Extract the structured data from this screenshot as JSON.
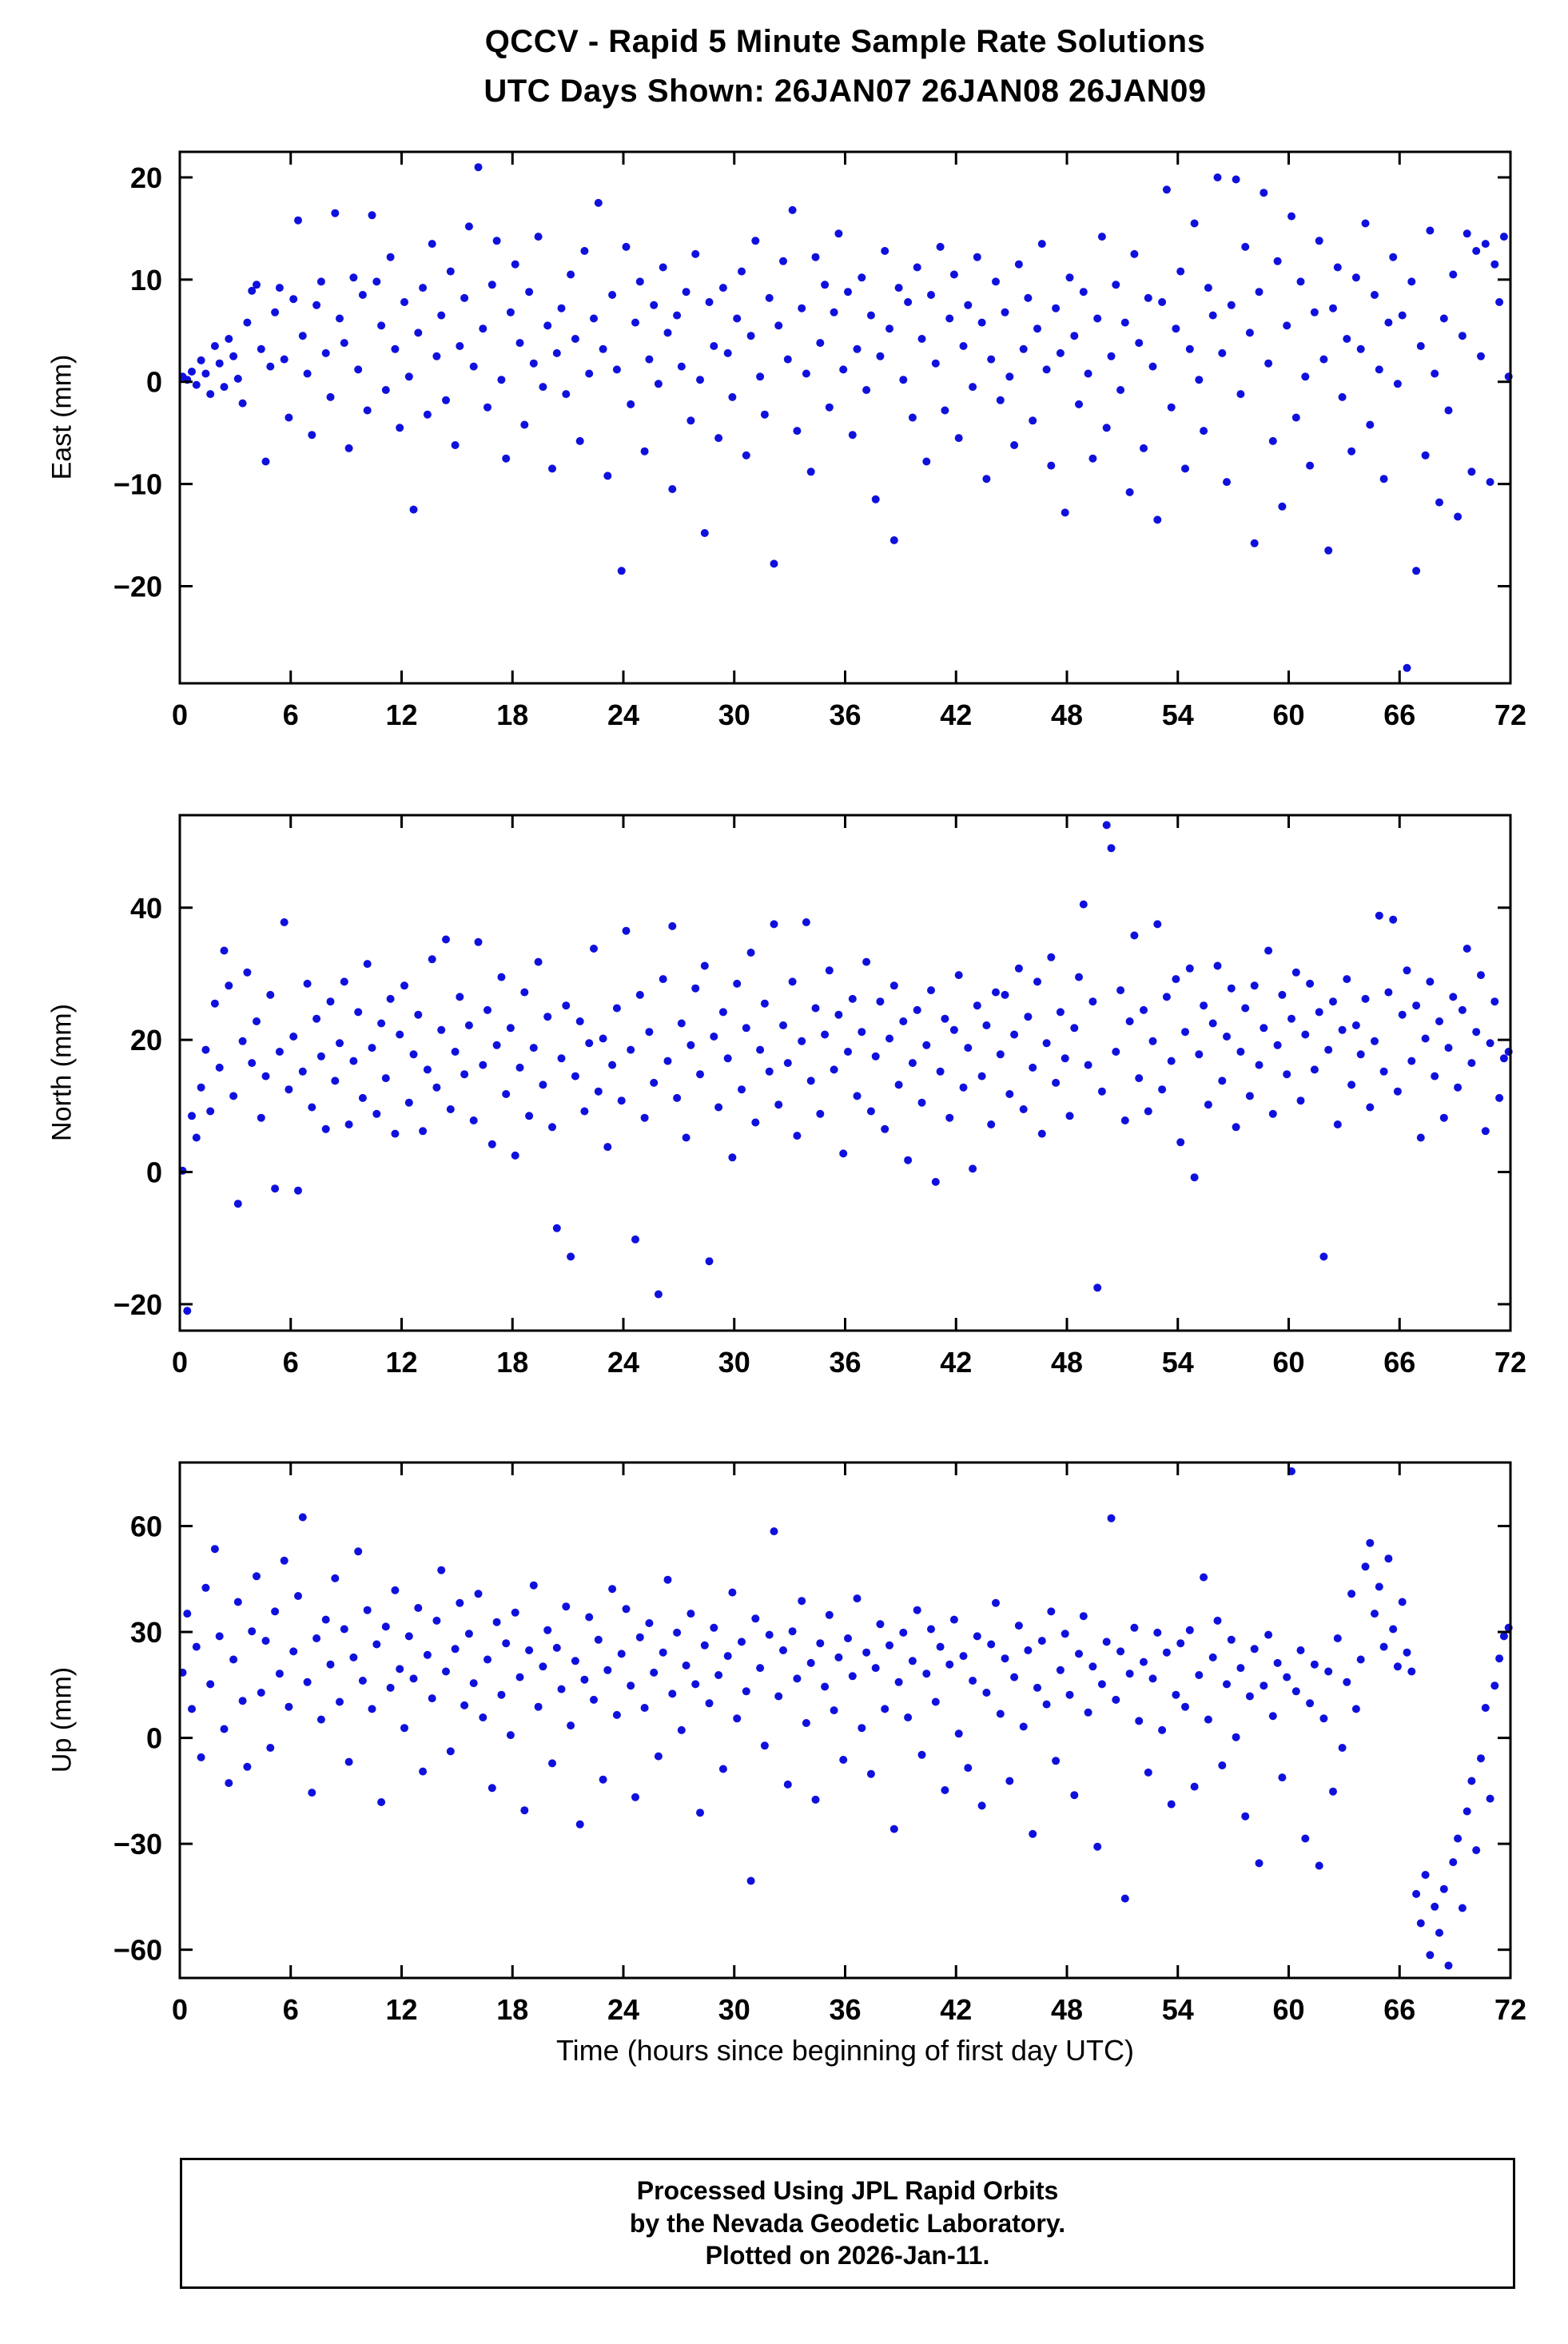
{
  "title": {
    "line1": "QCCV - Rapid 5 Minute Sample Rate Solutions",
    "line2": "UTC Days Shown:  26JAN07 26JAN08 26JAN09"
  },
  "footer": {
    "line1": "Processed Using JPL Rapid Orbits",
    "line2": "by the Nevada Geodetic Laboratory.",
    "line3": "Plotted on 2026-Jan-11."
  },
  "chart_data": {
    "type": "scatter",
    "marker_color": "#1010dd",
    "marker_radius": 5,
    "grid": false,
    "legend": "none",
    "x_axis": {
      "label": "Time (hours since beginning of first day UTC)",
      "lim": [
        0,
        72
      ],
      "ticks": [
        0,
        6,
        12,
        18,
        24,
        30,
        36,
        42,
        48,
        54,
        60,
        66,
        72
      ]
    },
    "panels": [
      {
        "name": "east",
        "ylabel": "East (mm)",
        "ylim": [
          -29.5,
          22.5
        ],
        "yticks": [
          20,
          10,
          0,
          -10,
          -20
        ],
        "points": {
          "x0": 0.15,
          "dx": 0.25,
          "y": [
            0.5,
            0.2,
            1.0,
            -0.3,
            2.1,
            0.8,
            -1.2,
            3.5,
            1.8,
            -0.5,
            4.2,
            2.5,
            0.3,
            -2.1,
            5.8,
            8.9,
            9.5,
            3.2,
            -7.8,
            1.5,
            6.8,
            9.2,
            2.2,
            -3.5,
            8.1,
            15.8,
            4.5,
            0.8,
            -5.2,
            7.5,
            9.8,
            2.8,
            -1.5,
            16.5,
            6.2,
            3.8,
            -6.5,
            10.2,
            1.2,
            8.5,
            -2.8,
            16.3,
            9.8,
            5.5,
            -0.8,
            12.2,
            3.2,
            -4.5,
            7.8,
            0.5,
            -12.5,
            4.8,
            9.2,
            -3.2,
            13.5,
            2.5,
            6.5,
            -1.8,
            10.8,
            -6.2,
            3.5,
            8.2,
            15.2,
            1.5,
            21.0,
            5.2,
            -2.5,
            9.5,
            13.8,
            0.2,
            -7.5,
            6.8,
            11.5,
            3.8,
            -4.2,
            8.8,
            1.8,
            14.2,
            -0.5,
            5.5,
            -8.5,
            2.8,
            7.2,
            -1.2,
            10.5,
            4.2,
            -5.8,
            12.8,
            0.8,
            6.2,
            17.5,
            3.2,
            -9.2,
            8.5,
            1.2,
            -18.5,
            13.2,
            -2.2,
            5.8,
            9.8,
            -6.8,
            2.2,
            7.5,
            -0.2,
            11.2,
            4.8,
            -10.5,
            6.5,
            1.5,
            8.8,
            -3.8,
            12.5,
            0.2,
            -14.8,
            7.8,
            3.5,
            -5.5,
            9.2,
            2.8,
            -1.5,
            6.2,
            10.8,
            -7.2,
            4.5,
            13.8,
            0.5,
            -3.2,
            8.2,
            -17.8,
            5.5,
            11.8,
            2.2,
            16.8,
            -4.8,
            7.2,
            0.8,
            -8.8,
            12.2,
            3.8,
            9.5,
            -2.5,
            6.8,
            14.5,
            1.2,
            8.8,
            -5.2,
            3.2,
            10.2,
            -0.8,
            6.5,
            -11.5,
            2.5,
            12.8,
            5.2,
            -15.5,
            9.2,
            0.2,
            7.8,
            -3.5,
            11.2,
            4.2,
            -7.8,
            8.5,
            1.8,
            13.2,
            -2.8,
            6.2,
            10.5,
            -5.5,
            3.5,
            7.5,
            -0.5,
            12.2,
            5.8,
            -9.5,
            2.2,
            9.8,
            -1.8,
            6.8,
            0.5,
            -6.2,
            11.5,
            3.2,
            8.2,
            -3.8,
            5.2,
            13.5,
            1.2,
            -8.2,
            7.2,
            2.8,
            -12.8,
            10.2,
            4.5,
            -2.2,
            8.8,
            0.8,
            -7.5,
            6.2,
            14.2,
            -4.5,
            2.5,
            9.5,
            -0.8,
            5.8,
            -10.8,
            12.5,
            3.8,
            -6.5,
            8.2,
            1.5,
            -13.5,
            7.8,
            18.8,
            -2.5,
            5.2,
            10.8,
            -8.5,
            3.2,
            15.5,
            0.2,
            -4.8,
            9.2,
            6.5,
            20.0,
            2.8,
            -9.8,
            7.5,
            19.8,
            -1.2,
            13.2,
            4.8,
            -15.8,
            8.8,
            18.5,
            1.8,
            -5.8,
            11.8,
            -12.2,
            5.5,
            16.2,
            -3.5,
            9.8,
            0.5,
            -8.2,
            6.8,
            13.8,
            2.2,
            -16.5,
            7.2,
            11.2,
            -1.5,
            4.2,
            -6.8,
            10.2,
            3.2,
            15.5,
            -4.2,
            8.5,
            1.2,
            -9.5,
            5.8,
            12.2,
            -0.2,
            6.5,
            -28.0,
            9.8,
            -18.5,
            3.5,
            -7.2,
            14.8,
            0.8,
            -11.8,
            6.2,
            -2.8,
            10.5,
            -13.2,
            4.5,
            14.5,
            -8.8,
            12.8,
            2.5,
            13.5,
            -9.8,
            11.5,
            7.8,
            14.2,
            0.5
          ]
        }
      },
      {
        "name": "north",
        "ylabel": "North (mm)",
        "ylim": [
          -24,
          54
        ],
        "yticks": [
          40,
          20,
          0,
          -20
        ],
        "points": {
          "x0": 0.15,
          "dx": 0.25,
          "y": [
            0.2,
            -21.0,
            8.5,
            5.2,
            12.8,
            18.5,
            9.2,
            25.5,
            15.8,
            33.5,
            28.2,
            11.5,
            -4.8,
            19.8,
            30.2,
            16.5,
            22.8,
            8.2,
            14.5,
            26.8,
            -2.5,
            18.2,
            37.8,
            12.5,
            20.5,
            -2.8,
            15.2,
            28.5,
            9.8,
            23.2,
            17.5,
            6.5,
            25.8,
            13.8,
            19.5,
            28.8,
            7.2,
            16.8,
            24.2,
            11.2,
            31.5,
            18.8,
            8.8,
            22.5,
            14.2,
            26.2,
            5.8,
            20.8,
            28.2,
            10.5,
            17.8,
            23.8,
            6.2,
            15.5,
            32.2,
            12.8,
            21.5,
            35.2,
            9.5,
            18.2,
            26.5,
            14.8,
            22.2,
            7.8,
            34.8,
            16.2,
            24.5,
            4.2,
            19.2,
            29.5,
            11.8,
            21.8,
            2.5,
            15.8,
            27.2,
            8.5,
            18.8,
            31.8,
            13.2,
            23.5,
            6.8,
            -8.5,
            17.2,
            25.2,
            -12.8,
            14.5,
            22.8,
            9.2,
            19.5,
            33.8,
            12.2,
            20.2,
            3.8,
            16.2,
            24.8,
            10.8,
            36.5,
            18.5,
            -10.2,
            26.8,
            8.2,
            21.2,
            13.5,
            -18.5,
            29.2,
            16.8,
            37.2,
            11.2,
            22.5,
            5.2,
            19.2,
            27.8,
            14.8,
            31.2,
            -13.5,
            20.5,
            9.8,
            24.2,
            17.2,
            2.2,
            28.5,
            12.5,
            21.8,
            33.2,
            7.5,
            18.5,
            25.5,
            15.2,
            37.5,
            10.2,
            22.2,
            16.5,
            28.8,
            5.5,
            19.8,
            37.8,
            13.8,
            24.8,
            8.8,
            20.8,
            30.5,
            15.5,
            23.8,
            2.8,
            18.2,
            26.2,
            11.5,
            21.2,
            31.8,
            9.2,
            17.5,
            25.8,
            6.5,
            20.2,
            28.2,
            13.2,
            22.8,
            1.8,
            16.5,
            24.5,
            10.5,
            19.2,
            27.5,
            -1.5,
            15.2,
            23.2,
            8.2,
            21.5,
            29.8,
            12.8,
            18.8,
            0.5,
            25.2,
            14.5,
            22.2,
            7.2,
            27.2,
            17.8,
            26.8,
            11.8,
            20.8,
            30.8,
            9.5,
            23.5,
            15.8,
            28.8,
            5.8,
            19.5,
            32.5,
            13.5,
            24.2,
            17.2,
            8.5,
            21.8,
            29.5,
            40.5,
            16.2,
            25.8,
            -17.5,
            12.2,
            52.5,
            49.0,
            18.2,
            27.5,
            7.8,
            22.8,
            35.8,
            14.2,
            24.5,
            9.2,
            19.8,
            37.5,
            12.5,
            26.5,
            16.8,
            29.2,
            4.5,
            21.2,
            30.8,
            -0.8,
            17.8,
            25.2,
            10.2,
            22.5,
            31.2,
            13.8,
            20.5,
            27.8,
            6.8,
            18.2,
            24.8,
            11.5,
            28.2,
            16.2,
            21.8,
            33.5,
            8.8,
            19.2,
            26.8,
            14.8,
            23.2,
            30.2,
            10.8,
            20.8,
            28.5,
            15.5,
            24.2,
            -12.8,
            18.5,
            25.8,
            7.2,
            21.5,
            29.2,
            13.2,
            22.2,
            17.8,
            26.2,
            9.8,
            19.8,
            38.8,
            15.2,
            27.2,
            38.2,
            12.2,
            23.8,
            30.5,
            16.8,
            25.2,
            5.2,
            20.2,
            28.8,
            14.5,
            22.8,
            8.2,
            18.8,
            26.5,
            12.8,
            24.5,
            33.8,
            16.5,
            21.2,
            29.8,
            6.2,
            19.5,
            25.8,
            11.2,
            17.2,
            18.2
          ]
        }
      },
      {
        "name": "up",
        "ylabel": "Up (mm)",
        "ylim": [
          -68,
          78
        ],
        "yticks": [
          60,
          30,
          0,
          -30,
          -60
        ],
        "points": {
          "x0": 0.15,
          "dx": 0.25,
          "y": [
            18.5,
            35.2,
            8.2,
            25.8,
            -5.5,
            42.5,
            15.2,
            53.5,
            28.8,
            2.5,
            -12.8,
            22.2,
            38.5,
            10.5,
            -8.2,
            30.2,
            45.8,
            12.8,
            27.5,
            -2.8,
            35.8,
            18.2,
            50.2,
            8.8,
            24.5,
            40.2,
            62.5,
            15.8,
            -15.5,
            28.2,
            5.2,
            33.5,
            20.8,
            45.2,
            10.2,
            30.8,
            -6.8,
            22.8,
            52.8,
            16.2,
            36.2,
            8.2,
            26.5,
            -18.2,
            31.5,
            14.2,
            41.8,
            19.5,
            2.8,
            28.8,
            16.8,
            36.8,
            -9.5,
            23.5,
            11.2,
            33.2,
            47.5,
            18.8,
            -3.8,
            25.2,
            38.2,
            9.2,
            29.5,
            15.5,
            40.8,
            5.8,
            22.2,
            -14.2,
            32.8,
            12.2,
            26.8,
            0.8,
            35.5,
            17.2,
            -20.5,
            24.8,
            43.2,
            8.8,
            20.2,
            30.5,
            -7.2,
            25.5,
            13.8,
            37.2,
            3.5,
            21.8,
            -24.5,
            16.5,
            34.2,
            10.8,
            27.8,
            -11.8,
            19.2,
            42.2,
            6.5,
            23.8,
            36.5,
            14.8,
            -16.8,
            28.5,
            8.5,
            32.5,
            18.5,
            -5.2,
            24.2,
            44.8,
            12.5,
            29.8,
            2.2,
            20.5,
            35.2,
            15.2,
            -21.2,
            26.2,
            9.8,
            31.2,
            17.8,
            -8.8,
            23.2,
            41.2,
            5.5,
            27.2,
            13.2,
            -40.5,
            33.8,
            19.8,
            -2.2,
            29.2,
            58.5,
            11.8,
            24.8,
            -13.2,
            30.2,
            16.8,
            38.8,
            4.2,
            21.2,
            -17.5,
            26.8,
            14.5,
            34.8,
            7.8,
            22.8,
            -6.2,
            28.2,
            17.5,
            39.5,
            2.8,
            24.2,
            -10.2,
            19.8,
            32.2,
            8.2,
            26.2,
            -25.8,
            15.8,
            29.8,
            5.8,
            21.8,
            36.2,
            -4.8,
            18.2,
            30.8,
            10.2,
            25.8,
            -14.8,
            20.8,
            33.5,
            1.2,
            23.2,
            -8.5,
            16.2,
            28.8,
            -19.2,
            12.8,
            26.5,
            38.2,
            6.8,
            22.5,
            -12.2,
            17.2,
            31.8,
            3.2,
            24.8,
            -27.2,
            14.2,
            27.5,
            9.5,
            35.8,
            -6.5,
            19.2,
            29.5,
            12.2,
            -16.2,
            23.8,
            34.5,
            7.2,
            20.2,
            -30.8,
            15.2,
            27.2,
            62.2,
            10.8,
            24.5,
            -45.5,
            18.2,
            31.2,
            4.8,
            21.5,
            -9.8,
            16.8,
            29.8,
            2.2,
            24.2,
            -18.8,
            12.2,
            26.8,
            8.8,
            30.5,
            -13.8,
            17.8,
            45.5,
            5.2,
            22.8,
            33.2,
            -7.8,
            15.2,
            27.8,
            0.2,
            19.8,
            -22.2,
            11.8,
            25.2,
            -35.5,
            14.8,
            29.2,
            6.2,
            21.2,
            -11.2,
            17.2,
            75.5,
            13.2,
            24.8,
            -28.5,
            9.8,
            20.8,
            -36.2,
            5.5,
            18.8,
            -15.2,
            28.2,
            -2.8,
            15.8,
            40.8,
            8.2,
            22.2,
            48.5,
            55.2,
            35.2,
            42.8,
            25.8,
            50.8,
            30.8,
            20.2,
            38.5,
            24.2,
            18.8,
            -44.2,
            -52.5,
            -38.8,
            -61.5,
            -47.8,
            -55.2,
            -42.8,
            -64.5,
            -35.2,
            -28.5,
            -48.2,
            -20.8,
            -12.2,
            -31.8,
            -5.8,
            8.5,
            -17.2,
            14.8,
            22.5,
            28.8,
            31.2
          ]
        }
      }
    ]
  }
}
